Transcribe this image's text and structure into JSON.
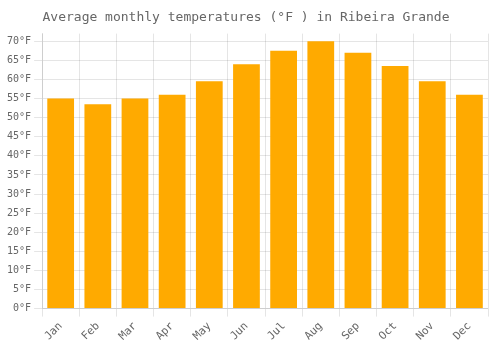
{
  "chart_data": {
    "type": "bar",
    "title": "Average monthly temperatures (°F ) in Ribeira Grande",
    "categories": [
      "Jan",
      "Feb",
      "Mar",
      "Apr",
      "May",
      "Jun",
      "Jul",
      "Aug",
      "Sep",
      "Oct",
      "Nov",
      "Dec"
    ],
    "values": [
      55,
      53.5,
      55,
      56,
      59.5,
      64,
      67.5,
      70,
      67,
      63.5,
      59.5,
      56
    ],
    "color": "#FFAA00",
    "ylim": [
      0,
      72
    ],
    "yticks": [
      {
        "value": 0,
        "label": "0°F"
      },
      {
        "value": 5,
        "label": "5°F"
      },
      {
        "value": 10,
        "label": "10°F"
      },
      {
        "value": 15,
        "label": "15°F"
      },
      {
        "value": 20,
        "label": "20°F"
      },
      {
        "value": 25,
        "label": "25°F"
      },
      {
        "value": 30,
        "label": "30°F"
      },
      {
        "value": 35,
        "label": "35°F"
      },
      {
        "value": 40,
        "label": "40°F"
      },
      {
        "value": 45,
        "label": "45°F"
      },
      {
        "value": 50,
        "label": "50°F"
      },
      {
        "value": 55,
        "label": "55°F"
      },
      {
        "value": 60,
        "label": "60°F"
      },
      {
        "value": 65,
        "label": "65°F"
      },
      {
        "value": 70,
        "label": "70°F"
      }
    ],
    "grid": true
  }
}
